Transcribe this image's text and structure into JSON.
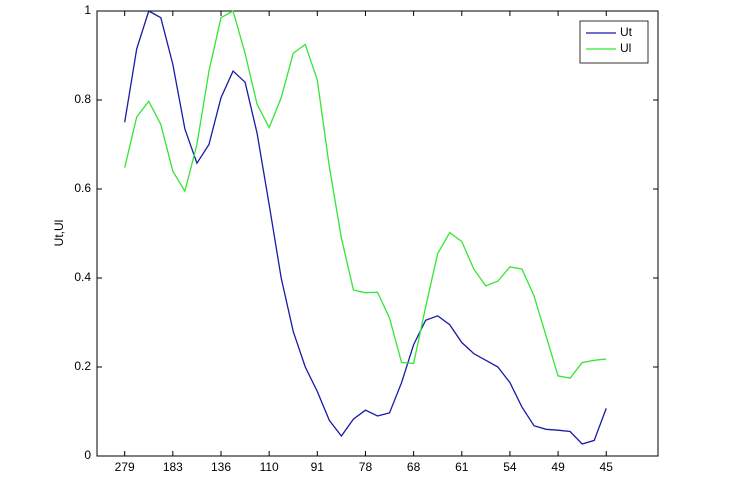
{
  "chart_data": {
    "type": "line",
    "y_label": "Ut,Ul",
    "x": [
      1,
      2,
      3,
      4,
      5,
      6,
      7,
      8,
      9,
      10,
      11,
      12,
      13,
      14,
      15,
      16,
      17,
      18,
      19,
      20,
      21,
      22,
      23,
      24,
      25,
      26,
      27,
      28,
      29,
      30,
      31,
      32,
      33,
      34,
      35,
      36,
      37,
      38,
      39,
      40,
      41
    ],
    "xlim": [
      -1.3,
      45.3
    ],
    "xticks": [
      {
        "value": 1,
        "label": "279"
      },
      {
        "value": 5,
        "label": "183"
      },
      {
        "value": 9,
        "label": "136"
      },
      {
        "value": 13,
        "label": "110"
      },
      {
        "value": 17,
        "label": "91"
      },
      {
        "value": 21,
        "label": "78"
      },
      {
        "value": 25,
        "label": "68"
      },
      {
        "value": 29,
        "label": "61"
      },
      {
        "value": 33,
        "label": "54"
      },
      {
        "value": 37,
        "label": "49"
      },
      {
        "value": 41,
        "label": "45"
      }
    ],
    "ylim": [
      0,
      1
    ],
    "yticks": [
      0,
      0.2,
      0.4,
      0.6,
      0.8,
      1
    ],
    "legend": "upper right",
    "series": [
      {
        "name": "Ut",
        "color": "#1a1aa6",
        "values": [
          0.75,
          0.915,
          1.0,
          0.985,
          0.88,
          0.735,
          0.658,
          0.7,
          0.805,
          0.865,
          0.84,
          0.725,
          0.565,
          0.4,
          0.28,
          0.2,
          0.145,
          0.08,
          0.045,
          0.083,
          0.103,
          0.09,
          0.097,
          0.165,
          0.25,
          0.305,
          0.315,
          0.295,
          0.255,
          0.23,
          0.215,
          0.2,
          0.165,
          0.11,
          0.068,
          0.06,
          0.058,
          0.055,
          0.027,
          0.035,
          0.107
        ]
      },
      {
        "name": "Ul",
        "color": "#33e633",
        "values": [
          0.648,
          0.762,
          0.797,
          0.745,
          0.64,
          0.595,
          0.7,
          0.865,
          0.985,
          1.0,
          0.905,
          0.79,
          0.738,
          0.805,
          0.905,
          0.925,
          0.845,
          0.65,
          0.49,
          0.373,
          0.367,
          0.368,
          0.31,
          0.21,
          0.208,
          0.335,
          0.455,
          0.502,
          0.482,
          0.42,
          0.382,
          0.393,
          0.425,
          0.42,
          0.36,
          0.27,
          0.18,
          0.175,
          0.21,
          0.215,
          0.218
        ]
      }
    ]
  }
}
